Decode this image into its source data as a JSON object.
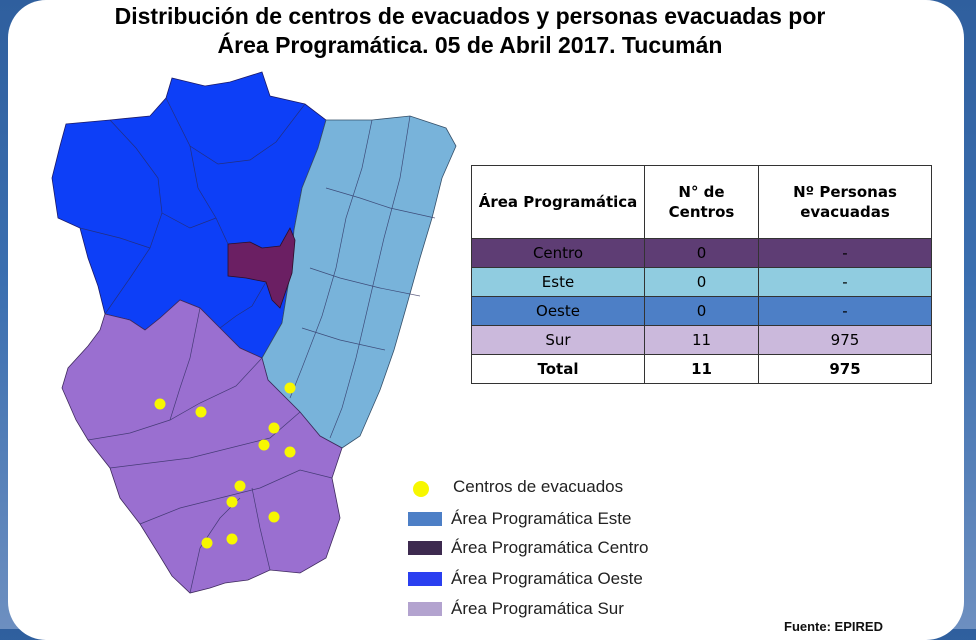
{
  "title": {
    "line1": "Distribución de centros de evacuados y personas evacuadas  por",
    "line2": "Área Programática. 05 de Abril  2017. Tucumán"
  },
  "colors": {
    "centro": "#5e3d74",
    "este": "#90cce0",
    "oeste": "#4d7fc6",
    "sur": "#cbb9dc",
    "map_oeste": "#0d3ff7",
    "map_este": "#78b3da",
    "map_centro": "#6b1f63",
    "map_sur": "#9a6fd0",
    "centers": "#f7f700"
  },
  "table": {
    "headers": [
      "Área Programática",
      "N° de Centros",
      "Nº Personas evacuadas"
    ],
    "rows": [
      {
        "area": "Centro",
        "centros": "0",
        "personas": "-",
        "color_key": "centro"
      },
      {
        "area": "Este",
        "centros": "0",
        "personas": "-",
        "color_key": "este"
      },
      {
        "area": "Oeste",
        "centros": "0",
        "personas": "-",
        "color_key": "oeste"
      },
      {
        "area": "Sur",
        "centros": "11",
        "personas": "975",
        "color_key": "sur"
      }
    ],
    "total": {
      "label": "Total",
      "centros": "11",
      "personas": "975"
    }
  },
  "legend": {
    "centros": "Centros de evacuados",
    "este": "Área Programática Este",
    "centro": "Área Programática Centro",
    "oeste": "Área Programática Oeste",
    "sur": "Área Programática Sur"
  },
  "legend_colors": {
    "este": "#4d7fc6",
    "centro": "#3d2a4f",
    "oeste": "#2a3ff0",
    "sur": "#b3a3cf"
  },
  "source": "Fuente: EPIRED"
}
